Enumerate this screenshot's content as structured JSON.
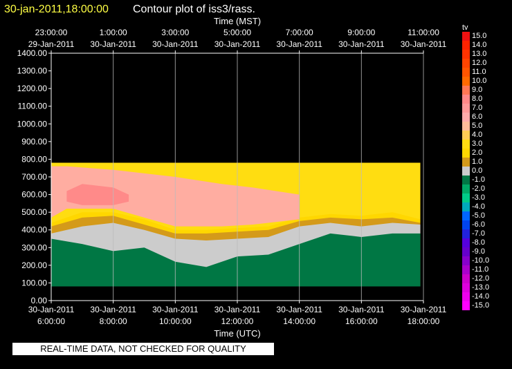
{
  "title": {
    "date": "30-jan-2011,18:00:00",
    "text": "Contour plot of iss3/rass."
  },
  "notice": "REAL-TIME DATA, NOT CHECKED FOR QUALITY",
  "chart_data": {
    "type": "heatmap",
    "title": "Contour plot of iss3/rass.",
    "top_axis": {
      "label": "Time (MST)",
      "ticks": [
        {
          "time": "23:00:00",
          "date": "29-Jan-2011"
        },
        {
          "time": "1:00:00",
          "date": "30-Jan-2011"
        },
        {
          "time": "3:00:00",
          "date": "30-Jan-2011"
        },
        {
          "time": "5:00:00",
          "date": "30-Jan-2011"
        },
        {
          "time": "7:00:00",
          "date": "30-Jan-2011"
        },
        {
          "time": "9:00:00",
          "date": "30-Jan-2011"
        },
        {
          "time": "11:00:00",
          "date": "30-Jan-2011"
        }
      ]
    },
    "bottom_axis": {
      "label": "Time (UTC)",
      "ticks": [
        {
          "date": "30-Jan-2011",
          "time": "6:00:00"
        },
        {
          "date": "30-Jan-2011",
          "time": "8:00:00"
        },
        {
          "date": "30-Jan-2011",
          "time": "10:00:00"
        },
        {
          "date": "30-Jan-2011",
          "time": "12:00:00"
        },
        {
          "date": "30-Jan-2011",
          "time": "14:00:00"
        },
        {
          "date": "30-Jan-2011",
          "time": "16:00:00"
        },
        {
          "date": "30-Jan-2011",
          "time": "18:00:00"
        }
      ],
      "range_hours_utc": [
        6,
        18
      ]
    },
    "y_axis": {
      "label": "",
      "ticks": [
        "1400.00",
        "1300.00",
        "1200.00",
        "1100.00",
        "1000.00",
        "900.00",
        "800.00",
        "700.00",
        "600.00",
        "500.00",
        "400.00",
        "300.00",
        "200.00",
        "100.00",
        "0.00"
      ],
      "range": [
        0,
        1400
      ]
    },
    "grid": true,
    "colorbar": {
      "label": "tv",
      "levels": [
        "15.0",
        "14.0",
        "13.0",
        "12.0",
        "11.0",
        "10.0",
        "9.0",
        "8.0",
        "7.0",
        "6.0",
        "5.0",
        "4.0",
        "3.0",
        "2.0",
        "1.0",
        "0.0",
        "-1.0",
        "-2.0",
        "-3.0",
        "-4.0",
        "-5.0",
        "-6.0",
        "-7.0",
        "-8.0",
        "-9.0",
        "-10.0",
        "-11.0",
        "-12.0",
        "-13.0",
        "-14.0",
        "-15.0"
      ],
      "colors": [
        "#ee1111",
        "#ff2200",
        "#ff3300",
        "#ff4400",
        "#ff5500",
        "#ff6a00",
        "#ff7755",
        "#ff8888",
        "#ff9999",
        "#ffaaaa",
        "#ffbb99",
        "#ffcc55",
        "#ffdd11",
        "#ffd700",
        "#d49a1a",
        "#cccccc",
        "#007744",
        "#00aa66",
        "#00cc88",
        "#00aabb",
        "#0066ff",
        "#0044ee",
        "#2222dd",
        "#5500dd",
        "#6600cc",
        "#8800cc",
        "#aa00cc",
        "#cc00cc",
        "#dd00dd",
        "#ee00ee",
        "#ff00ff"
      ]
    },
    "field": {
      "x_hours_utc": [
        6.0,
        7.0,
        8.0,
        9.0,
        10.0,
        11.0,
        12.0,
        13.0,
        14.0,
        15.0,
        16.0,
        17.0,
        17.9
      ],
      "layers_m": [
        {
          "bottom": 80,
          "top_profile": [
            350,
            320,
            280,
            300,
            220,
            190,
            250,
            260,
            320,
            380,
            360,
            380,
            380
          ],
          "value": -1.0
        },
        {
          "bottom": 80,
          "top_profile": [
            380,
            420,
            440,
            400,
            350,
            340,
            350,
            360,
            420,
            440,
            420,
            440,
            430
          ],
          "value": 0.0
        },
        {
          "bottom": 80,
          "top_profile": [
            420,
            470,
            480,
            430,
            380,
            380,
            390,
            400,
            450,
            470,
            460,
            470,
            440
          ],
          "value": 1.0
        },
        {
          "bottom": 80,
          "top_profile": [
            440,
            500,
            500,
            460,
            400,
            400,
            410,
            420,
            470,
            490,
            480,
            500,
            460
          ],
          "value": 2.0
        },
        {
          "bottom": 80,
          "top_profile": [
            780,
            780,
            780,
            780,
            780,
            780,
            780,
            780,
            780,
            780,
            780,
            780,
            780
          ],
          "value": 3.0
        }
      ],
      "warm_core": [
        {
          "x": [
            6.0,
            6.5,
            8.0,
            9.0,
            10.0,
            11.5,
            12.5,
            14.0
          ],
          "y_top": [
            760,
            760,
            740,
            720,
            700,
            660,
            640,
            600
          ],
          "y_bottom": [
            470,
            520,
            520,
            470,
            420,
            420,
            430,
            460
          ],
          "value": 6.0
        },
        {
          "x": [
            6.5,
            7.0,
            8.0,
            8.5
          ],
          "y_top": [
            620,
            660,
            640,
            600
          ],
          "y_bottom": [
            560,
            540,
            540,
            560
          ],
          "value": 8.0
        }
      ]
    }
  }
}
